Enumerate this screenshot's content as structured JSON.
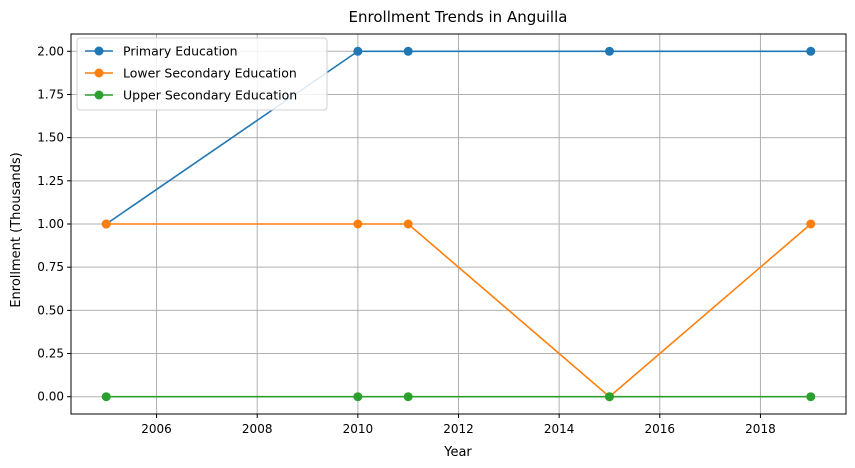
{
  "chart_data": {
    "type": "line",
    "title": "Enrollment Trends in Anguilla",
    "xlabel": "Year",
    "ylabel": "Enrollment (Thousands)",
    "x": [
      2005,
      2010,
      2011,
      2015,
      2019
    ],
    "xlim": [
      2004.3,
      2019.7
    ],
    "ylim": [
      -0.1,
      2.1
    ],
    "xticks": [
      2006,
      2008,
      2010,
      2012,
      2014,
      2016,
      2018
    ],
    "yticks": [
      0.0,
      0.25,
      0.5,
      0.75,
      1.0,
      1.25,
      1.5,
      1.75,
      2.0
    ],
    "ytick_labels": [
      "0.00",
      "0.25",
      "0.50",
      "0.75",
      "1.00",
      "1.25",
      "1.50",
      "1.75",
      "2.00"
    ],
    "grid": true,
    "legend_position": "top-left",
    "series": [
      {
        "name": "Primary Education",
        "color": "#1f77b4",
        "marker": "circle",
        "values": [
          1,
          2,
          2,
          2,
          2
        ]
      },
      {
        "name": "Lower Secondary Education",
        "color": "#ff7f0e",
        "marker": "circle",
        "values": [
          1,
          1,
          1,
          0,
          1
        ]
      },
      {
        "name": "Upper Secondary Education",
        "color": "#2ca02c",
        "marker": "circle",
        "values": [
          0,
          0,
          0,
          0,
          0
        ]
      }
    ]
  }
}
